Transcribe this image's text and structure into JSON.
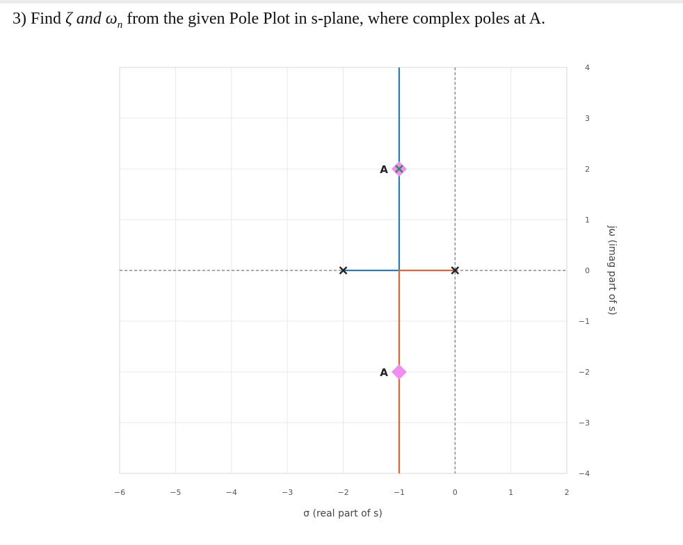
{
  "question": {
    "number": "3) Find",
    "zeta": "ζ",
    "and": "and",
    "omega": "ω",
    "omega_sub": "n",
    "rest": "from the given Pole Plot in s-plane, where complex poles at A."
  },
  "plot": {
    "xlabel": "σ (real part of s)",
    "ylabel": "jω (imag part of s)",
    "xlim": [
      -6,
      2
    ],
    "ylim": [
      -4,
      4
    ],
    "xticks": [
      -6,
      -5,
      -4,
      -3,
      -2,
      -1,
      0,
      1,
      2
    ],
    "yticks": [
      4,
      3,
      2,
      1,
      0,
      -1,
      -2,
      -3,
      -4
    ],
    "poles": [
      {
        "x": -2,
        "y": 0
      },
      {
        "x": 0,
        "y": 0
      },
      {
        "x": -1,
        "y": 2
      }
    ],
    "points_A": [
      {
        "label": "A",
        "x": -1,
        "y": 2
      },
      {
        "label": "A",
        "x": -1,
        "y": -2
      }
    ],
    "locus_blue": [
      [
        -2,
        0
      ],
      [
        -1,
        0
      ],
      [
        -1,
        4
      ]
    ],
    "locus_orange": [
      [
        0,
        0
      ],
      [
        -1,
        0
      ],
      [
        -1,
        -4
      ]
    ],
    "colors": {
      "blue": "#2b7bb9",
      "orange": "#d9683a",
      "marker_A": "#f08ef0",
      "pole_green": "#2f8a5a",
      "grid": "#e6e9f0"
    }
  }
}
